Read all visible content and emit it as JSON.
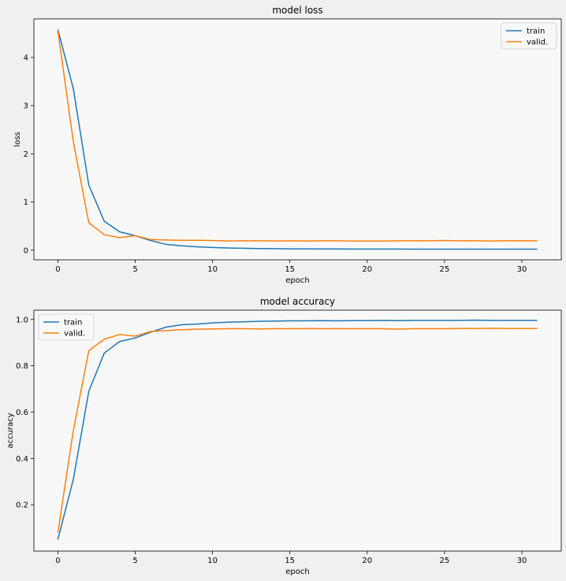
{
  "chart_data": [
    {
      "type": "line",
      "title": "model loss",
      "xlabel": "epoch",
      "ylabel": "loss",
      "xlim": [
        -1.55,
        32.55
      ],
      "ylim": [
        -0.2,
        4.8
      ],
      "xticks": [
        0,
        5,
        10,
        15,
        20,
        25,
        30
      ],
      "yticks": [
        0,
        1,
        2,
        3,
        4
      ],
      "legend_position": "top-right",
      "grid": false,
      "series": [
        {
          "name": "train",
          "color": "#1f77b4",
          "x": [
            0,
            1,
            2,
            3,
            4,
            5,
            6,
            7,
            8,
            9,
            10,
            11,
            12,
            13,
            14,
            15,
            16,
            17,
            18,
            19,
            20,
            21,
            22,
            23,
            24,
            25,
            26,
            27,
            28,
            29,
            30,
            31
          ],
          "values": [
            4.58,
            3.35,
            1.35,
            0.6,
            0.38,
            0.3,
            0.2,
            0.12,
            0.09,
            0.07,
            0.055,
            0.045,
            0.038,
            0.033,
            0.03,
            0.027,
            0.026,
            0.025,
            0.024,
            0.023,
            0.022,
            0.022,
            0.022,
            0.021,
            0.021,
            0.021,
            0.02,
            0.02,
            0.02,
            0.02,
            0.02,
            0.02
          ]
        },
        {
          "name": "valid.",
          "color": "#ff7f0e",
          "x": [
            0,
            1,
            2,
            3,
            4,
            5,
            6,
            7,
            8,
            9,
            10,
            11,
            12,
            13,
            14,
            15,
            16,
            17,
            18,
            19,
            20,
            21,
            22,
            23,
            24,
            25,
            26,
            27,
            28,
            29,
            30,
            31
          ],
          "values": [
            4.55,
            2.25,
            0.57,
            0.32,
            0.26,
            0.3,
            0.22,
            0.21,
            0.205,
            0.205,
            0.2,
            0.19,
            0.195,
            0.195,
            0.19,
            0.195,
            0.19,
            0.195,
            0.195,
            0.19,
            0.19,
            0.19,
            0.195,
            0.195,
            0.195,
            0.2,
            0.195,
            0.195,
            0.19,
            0.195,
            0.195,
            0.195
          ]
        }
      ]
    },
    {
      "type": "line",
      "title": "model accuracy",
      "xlabel": "epoch",
      "ylabel": "accuracy",
      "xlim": [
        -1.55,
        32.55
      ],
      "ylim": [
        0.0,
        1.04
      ],
      "xticks": [
        0,
        5,
        10,
        15,
        20,
        25,
        30
      ],
      "yticks": [
        0.2,
        0.4,
        0.6,
        0.8,
        1.0
      ],
      "ytick_format": 1,
      "legend_position": "top-left",
      "grid": false,
      "series": [
        {
          "name": "train",
          "color": "#1f77b4",
          "x": [
            0,
            1,
            2,
            3,
            4,
            5,
            6,
            7,
            8,
            9,
            10,
            11,
            12,
            13,
            14,
            15,
            16,
            17,
            18,
            19,
            20,
            21,
            22,
            23,
            24,
            25,
            26,
            27,
            28,
            29,
            30,
            31
          ],
          "values": [
            0.05,
            0.31,
            0.69,
            0.855,
            0.905,
            0.92,
            0.945,
            0.967,
            0.977,
            0.98,
            0.985,
            0.988,
            0.99,
            0.992,
            0.993,
            0.994,
            0.994,
            0.995,
            0.994,
            0.995,
            0.995,
            0.996,
            0.995,
            0.996,
            0.996,
            0.996,
            0.996,
            0.997,
            0.996,
            0.996,
            0.996,
            0.996
          ]
        },
        {
          "name": "valid.",
          "color": "#ff7f0e",
          "x": [
            0,
            1,
            2,
            3,
            4,
            5,
            6,
            7,
            8,
            9,
            10,
            11,
            12,
            13,
            14,
            15,
            16,
            17,
            18,
            19,
            20,
            21,
            22,
            23,
            24,
            25,
            26,
            27,
            28,
            29,
            30,
            31
          ],
          "values": [
            0.08,
            0.52,
            0.865,
            0.915,
            0.935,
            0.928,
            0.948,
            0.952,
            0.956,
            0.958,
            0.959,
            0.96,
            0.96,
            0.959,
            0.96,
            0.96,
            0.961,
            0.96,
            0.96,
            0.96,
            0.96,
            0.96,
            0.958,
            0.96,
            0.96,
            0.96,
            0.961,
            0.961,
            0.962,
            0.961,
            0.961,
            0.961
          ]
        }
      ]
    }
  ]
}
